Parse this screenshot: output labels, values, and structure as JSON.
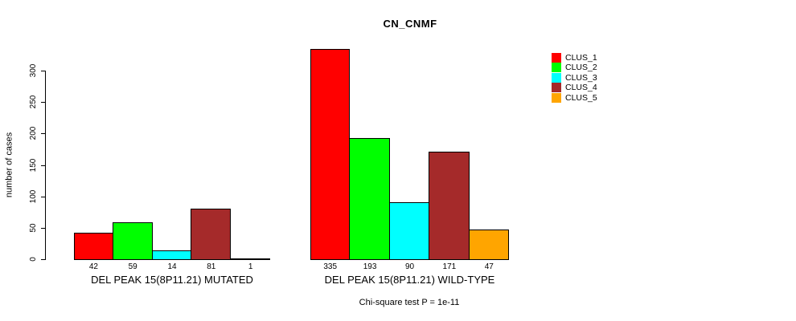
{
  "chart_data": {
    "type": "bar",
    "title": "CN_CNMF",
    "ylabel": "number of cases",
    "xlabel": "",
    "ylim": [
      0,
      300
    ],
    "yticks": [
      0,
      50,
      100,
      150,
      200,
      250,
      300
    ],
    "grid": false,
    "legend_position": "top-right",
    "series": [
      "CLUS_1",
      "CLUS_2",
      "CLUS_3",
      "CLUS_4",
      "CLUS_5"
    ],
    "colors": [
      "#FF0000",
      "#00FF00",
      "#00FFFF",
      "#A52A2A",
      "#FFA500"
    ],
    "groups": [
      {
        "label": "DEL PEAK 15(8P11.21) MUTATED",
        "values": [
          42,
          59,
          14,
          81,
          1
        ],
        "value_labels": [
          "42",
          "59",
          "14",
          "81",
          "1"
        ]
      },
      {
        "label": "DEL PEAK 15(8P11.21) WILD-TYPE",
        "values": [
          335,
          193,
          90,
          171,
          47
        ],
        "value_labels": [
          "335",
          "193",
          "90",
          "171",
          "47"
        ]
      }
    ],
    "annotation": "Chi-square test P = 1e-11"
  },
  "legend": {
    "entries": [
      {
        "label": "CLUS_1",
        "color": "#FF0000"
      },
      {
        "label": "CLUS_2",
        "color": "#00FF00"
      },
      {
        "label": "CLUS_3",
        "color": "#00FFFF"
      },
      {
        "label": "CLUS_4",
        "color": "#A52A2A"
      },
      {
        "label": "CLUS_5",
        "color": "#FFA500"
      }
    ]
  },
  "text_colors": {
    "foreground": "#000000",
    "background": "#FFFFFF"
  }
}
